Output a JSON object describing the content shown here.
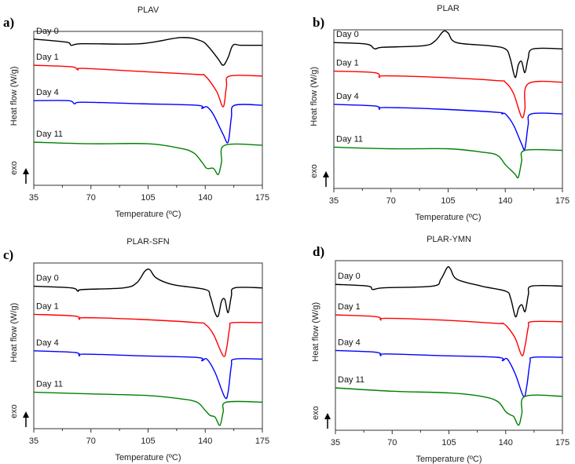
{
  "chart_data": [
    {
      "type": "line",
      "panel_label": "a)",
      "title": "PLAV",
      "xlabel": "Temperature (ºC)",
      "ylabel": "Heat flow (W/g)",
      "exo_label": "exo",
      "xlim": [
        35,
        175
      ],
      "ylim": [
        0,
        100
      ],
      "xticks": [
        35,
        70,
        105,
        140,
        175
      ],
      "grid": false,
      "series": [
        {
          "name": "Day 0",
          "color": "#000000",
          "points": [
            [
              35,
              95
            ],
            [
              55,
              93
            ],
            [
              58,
              91
            ],
            [
              65,
              92
            ],
            [
              100,
              92
            ],
            [
              125,
              96
            ],
            [
              137,
              94
            ],
            [
              142,
              90
            ],
            [
              148,
              82
            ],
            [
              151,
              78
            ],
            [
              154,
              83
            ],
            [
              157,
              91
            ],
            [
              162,
              91
            ],
            [
              175,
              91
            ]
          ]
        },
        {
          "name": "Day 1",
          "color": "#ff0000",
          "points": [
            [
              35,
              78
            ],
            [
              58,
              77
            ],
            [
              62,
              75
            ],
            [
              65,
              76
            ],
            [
              100,
              74
            ],
            [
              135,
              72
            ],
            [
              140,
              71
            ],
            [
              147,
              61
            ],
            [
              151,
              51
            ],
            [
              153,
              64
            ],
            [
              155,
              71
            ],
            [
              175,
              71
            ]
          ]
        },
        {
          "name": "Day 4",
          "color": "#0000ff",
          "points": [
            [
              35,
              55
            ],
            [
              56,
              55
            ],
            [
              60,
              53
            ],
            [
              65,
              54
            ],
            [
              100,
              53
            ],
            [
              135,
              52
            ],
            [
              138,
              50
            ],
            [
              141,
              51
            ],
            [
              145,
              46
            ],
            [
              151,
              33
            ],
            [
              154,
              28
            ],
            [
              156,
              44
            ],
            [
              158,
              52
            ],
            [
              175,
              52
            ]
          ]
        },
        {
          "name": "Day 11",
          "color": "#008000",
          "points": [
            [
              35,
              28
            ],
            [
              70,
              27
            ],
            [
              105,
              27
            ],
            [
              125,
              24
            ],
            [
              133,
              21
            ],
            [
              138,
              15
            ],
            [
              141,
              11
            ],
            [
              145,
              11
            ],
            [
              148,
              7
            ],
            [
              150,
              15
            ],
            [
              152,
              26
            ],
            [
              175,
              26
            ]
          ]
        }
      ]
    },
    {
      "type": "line",
      "panel_label": "b)",
      "title": "PLAR",
      "xlabel": "Temperature (ºC)",
      "ylabel": "Heat flow (W/g)",
      "exo_label": "exo",
      "xlim": [
        35,
        175
      ],
      "ylim": [
        0,
        100
      ],
      "xticks": [
        35,
        70,
        105,
        140,
        175
      ],
      "grid": false,
      "series": [
        {
          "name": "Day 0",
          "color": "#000000",
          "points": [
            [
              35,
              92
            ],
            [
              55,
              91
            ],
            [
              60,
              88
            ],
            [
              65,
              89
            ],
            [
              90,
              90
            ],
            [
              97,
              93
            ],
            [
              102,
              99
            ],
            [
              105,
              98
            ],
            [
              110,
              92
            ],
            [
              130,
              90
            ],
            [
              140,
              88
            ],
            [
              143,
              82
            ],
            [
              146,
              70
            ],
            [
              148,
              78
            ],
            [
              150,
              80
            ],
            [
              152,
              73
            ],
            [
              154,
              82
            ],
            [
              157,
              88
            ],
            [
              175,
              88
            ]
          ]
        },
        {
          "name": "Day 1",
          "color": "#ff0000",
          "points": [
            [
              35,
              74
            ],
            [
              60,
              73
            ],
            [
              63,
              70
            ],
            [
              66,
              71
            ],
            [
              100,
              70
            ],
            [
              135,
              68
            ],
            [
              140,
              67
            ],
            [
              145,
              60
            ],
            [
              150,
              45
            ],
            [
              152,
              50
            ],
            [
              154,
              66
            ],
            [
              175,
              67
            ]
          ]
        },
        {
          "name": "Day 4",
          "color": "#0000ff",
          "points": [
            [
              35,
              53
            ],
            [
              60,
              52
            ],
            [
              63,
              50
            ],
            [
              66,
              51
            ],
            [
              100,
              50
            ],
            [
              135,
              48
            ],
            [
              138,
              47
            ],
            [
              140,
              47
            ],
            [
              145,
              40
            ],
            [
              150,
              28
            ],
            [
              152,
              25
            ],
            [
              154,
              40
            ],
            [
              156,
              47
            ],
            [
              175,
              47
            ]
          ]
        },
        {
          "name": "Day 11",
          "color": "#008000",
          "points": [
            [
              35,
              26
            ],
            [
              70,
              25
            ],
            [
              105,
              25
            ],
            [
              125,
              23
            ],
            [
              135,
              21
            ],
            [
              140,
              15
            ],
            [
              143,
              12
            ],
            [
              146,
              9
            ],
            [
              148,
              7
            ],
            [
              150,
              17
            ],
            [
              152,
              24
            ],
            [
              175,
              24
            ]
          ]
        }
      ]
    },
    {
      "type": "line",
      "panel_label": "c)",
      "title": "PLAR-SFN",
      "xlabel": "Temperature (ºC)",
      "ylabel": "Heat flow (W/g)",
      "exo_label": "exo",
      "xlim": [
        35,
        175
      ],
      "ylim": [
        0,
        100
      ],
      "xticks": [
        35,
        70,
        105,
        140,
        175
      ],
      "grid": false,
      "series": [
        {
          "name": "Day 0",
          "color": "#000000",
          "points": [
            [
              35,
              86
            ],
            [
              58,
              85
            ],
            [
              62,
              83
            ],
            [
              65,
              84
            ],
            [
              90,
              85
            ],
            [
              98,
              88
            ],
            [
              103,
              95
            ],
            [
              106,
              96
            ],
            [
              110,
              91
            ],
            [
              120,
              87
            ],
            [
              140,
              84
            ],
            [
              143,
              80
            ],
            [
              146,
              70
            ],
            [
              148,
              68
            ],
            [
              150,
              77
            ],
            [
              152,
              78
            ],
            [
              154,
              70
            ],
            [
              156,
              80
            ],
            [
              158,
              85
            ],
            [
              175,
              85
            ]
          ]
        },
        {
          "name": "Day 1",
          "color": "#ff0000",
          "points": [
            [
              35,
              69
            ],
            [
              60,
              68
            ],
            [
              63,
              66
            ],
            [
              66,
              67
            ],
            [
              100,
              66
            ],
            [
              135,
              64
            ],
            [
              140,
              63
            ],
            [
              145,
              57
            ],
            [
              151,
              44
            ],
            [
              153,
              48
            ],
            [
              155,
              61
            ],
            [
              157,
              64
            ],
            [
              175,
              64
            ]
          ]
        },
        {
          "name": "Day 4",
          "color": "#0000ff",
          "points": [
            [
              35,
              47
            ],
            [
              60,
              46
            ],
            [
              63,
              44
            ],
            [
              66,
              45
            ],
            [
              100,
              44
            ],
            [
              135,
              43
            ],
            [
              138,
              41
            ],
            [
              141,
              42
            ],
            [
              146,
              34
            ],
            [
              152,
              19
            ],
            [
              154,
              22
            ],
            [
              156,
              38
            ],
            [
              158,
              42
            ],
            [
              175,
              42
            ]
          ]
        },
        {
          "name": "Day 11",
          "color": "#008000",
          "points": [
            [
              35,
              22
            ],
            [
              70,
              21
            ],
            [
              105,
              20
            ],
            [
              125,
              18
            ],
            [
              135,
              16
            ],
            [
              140,
              11
            ],
            [
              143,
              8
            ],
            [
              146,
              7
            ],
            [
              149,
              2
            ],
            [
              151,
              10
            ],
            [
              153,
              16
            ],
            [
              175,
              16
            ]
          ]
        }
      ]
    },
    {
      "type": "line",
      "panel_label": "d)",
      "title": "PLAR-YMN",
      "xlabel": "Temperature (ºC)",
      "ylabel": "Heat flow (W/g)",
      "exo_label": "exo",
      "xlim": [
        35,
        175
      ],
      "ylim": [
        0,
        100
      ],
      "xticks": [
        35,
        70,
        105,
        140,
        175
      ],
      "grid": false,
      "series": [
        {
          "name": "Day 0",
          "color": "#000000",
          "points": [
            [
              35,
              86
            ],
            [
              55,
              85
            ],
            [
              58,
              83
            ],
            [
              65,
              84
            ],
            [
              95,
              85
            ],
            [
              100,
              89
            ],
            [
              104,
              96
            ],
            [
              106,
              95
            ],
            [
              110,
              89
            ],
            [
              125,
              85
            ],
            [
              140,
              82
            ],
            [
              143,
              78
            ],
            [
              146,
              67
            ],
            [
              148,
              72
            ],
            [
              150,
              74
            ],
            [
              152,
              70
            ],
            [
              154,
              80
            ],
            [
              156,
              85
            ],
            [
              175,
              85
            ]
          ]
        },
        {
          "name": "Day 1",
          "color": "#ff0000",
          "points": [
            [
              35,
              68
            ],
            [
              60,
              67
            ],
            [
              63,
              65
            ],
            [
              66,
              66
            ],
            [
              100,
              65
            ],
            [
              135,
              63
            ],
            [
              138,
              63
            ],
            [
              141,
              61
            ],
            [
              146,
              54
            ],
            [
              150,
              44
            ],
            [
              152,
              50
            ],
            [
              154,
              61
            ],
            [
              156,
              64
            ],
            [
              175,
              64
            ]
          ]
        },
        {
          "name": "Day 4",
          "color": "#0000ff",
          "points": [
            [
              35,
              47
            ],
            [
              60,
              46
            ],
            [
              63,
              44
            ],
            [
              66,
              45
            ],
            [
              100,
              44
            ],
            [
              135,
              43
            ],
            [
              138,
              41
            ],
            [
              141,
              42
            ],
            [
              146,
              33
            ],
            [
              151,
              20
            ],
            [
              153,
              26
            ],
            [
              155,
              40
            ],
            [
              157,
              43
            ],
            [
              175,
              43
            ]
          ]
        },
        {
          "name": "Day 11",
          "color": "#008000",
          "points": [
            [
              35,
              25
            ],
            [
              70,
              23
            ],
            [
              105,
              22
            ],
            [
              125,
              20
            ],
            [
              135,
              17
            ],
            [
              140,
              11
            ],
            [
              143,
              9
            ],
            [
              145,
              8
            ],
            [
              148,
              3
            ],
            [
              150,
              10
            ],
            [
              152,
              20
            ],
            [
              175,
              20
            ]
          ]
        }
      ]
    }
  ]
}
